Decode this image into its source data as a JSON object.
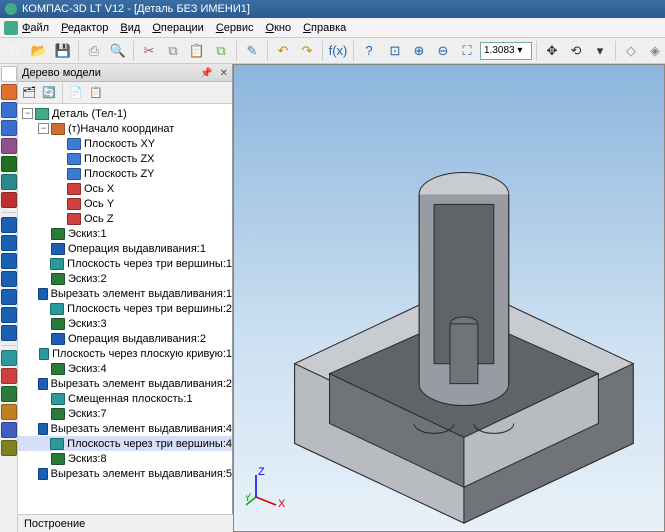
{
  "title": "КОМПАС-3D LT V12 - [Деталь БЕЗ ИМЕНИ1]",
  "menu": [
    "Файл",
    "Редактор",
    "Вид",
    "Операции",
    "Сервис",
    "Окно",
    "Справка"
  ],
  "zoom_value": "1.3083",
  "panel_title": "Дерево модели",
  "status_text": "Построение",
  "tree_root": "Деталь (Тел-1)",
  "tree": [
    {
      "d": 1,
      "t": "(т)Начало координат",
      "exp": true,
      "ic": "origin"
    },
    {
      "d": 2,
      "t": "Плоскость XY",
      "ic": "plane"
    },
    {
      "d": 2,
      "t": "Плоскость ZX",
      "ic": "plane"
    },
    {
      "d": 2,
      "t": "Плоскость ZY",
      "ic": "plane"
    },
    {
      "d": 2,
      "t": "Ось X",
      "ic": "axis"
    },
    {
      "d": 2,
      "t": "Ось Y",
      "ic": "axis"
    },
    {
      "d": 2,
      "t": "Ось Z",
      "ic": "axis"
    },
    {
      "d": 1,
      "t": "Эскиз:1",
      "ic": "sketch"
    },
    {
      "d": 1,
      "t": "Операция выдавливания:1",
      "ic": "extrude"
    },
    {
      "d": 1,
      "t": "Плоскость через три вершины:1",
      "ic": "plane3"
    },
    {
      "d": 1,
      "t": "Эскиз:2",
      "ic": "sketch"
    },
    {
      "d": 1,
      "t": "Вырезать элемент выдавливания:1",
      "ic": "cut"
    },
    {
      "d": 1,
      "t": "Плоскость через три вершины:2",
      "ic": "plane3"
    },
    {
      "d": 1,
      "t": "Эскиз:3",
      "ic": "sketch"
    },
    {
      "d": 1,
      "t": "Операция выдавливания:2",
      "ic": "extrude"
    },
    {
      "d": 1,
      "t": "Плоскость через плоскую кривую:1",
      "ic": "plane3"
    },
    {
      "d": 1,
      "t": "Эскиз:4",
      "ic": "sketch"
    },
    {
      "d": 1,
      "t": "Вырезать элемент выдавливания:2",
      "ic": "cut"
    },
    {
      "d": 1,
      "t": "Смещенная плоскость:1",
      "ic": "plane3"
    },
    {
      "d": 1,
      "t": "Эскиз:7",
      "ic": "sketch"
    },
    {
      "d": 1,
      "t": "Вырезать элемент выдавливания:4",
      "ic": "cut"
    },
    {
      "d": 1,
      "t": "Плоскость через три вершины:4",
      "ic": "plane3",
      "sel": true
    },
    {
      "d": 1,
      "t": "Эскиз:8",
      "ic": "sketch"
    },
    {
      "d": 1,
      "t": "Вырезать элемент выдавливания:5",
      "ic": "cut"
    }
  ],
  "icon_colors": {
    "origin": "#d07030",
    "plane": "#3b7bd1",
    "axis": "#d04040",
    "sketch": "#2a7a3a",
    "extrude": "#1a5fb4",
    "cut": "#1a5fb4",
    "plane3": "#2a9a9a"
  },
  "toolbar_icons": [
    {
      "n": "new",
      "c": "#fff",
      "s": "□"
    },
    {
      "n": "open",
      "c": "#e8c060",
      "s": "📂"
    },
    {
      "n": "save",
      "c": "#3a6",
      "s": "💾"
    },
    {
      "n": "sep"
    },
    {
      "n": "print",
      "c": "#888",
      "s": "⎙"
    },
    {
      "n": "preview",
      "c": "#48a",
      "s": "🔍"
    },
    {
      "n": "sep"
    },
    {
      "n": "cut",
      "c": "#a55",
      "s": "✂"
    },
    {
      "n": "copy",
      "c": "#888",
      "s": "⧉"
    },
    {
      "n": "paste",
      "c": "#c90",
      "s": "📋"
    },
    {
      "n": "copy-props",
      "c": "#6a4",
      "s": "⧉"
    },
    {
      "n": "sep"
    },
    {
      "n": "props",
      "c": "#48a",
      "s": "✎"
    },
    {
      "n": "sep"
    },
    {
      "n": "undo",
      "c": "#c80",
      "s": "↶"
    },
    {
      "n": "redo",
      "c": "#c80",
      "s": "↷"
    },
    {
      "n": "sep"
    },
    {
      "n": "fx",
      "c": "#26a",
      "s": "f(x)"
    },
    {
      "n": "sep"
    },
    {
      "n": "help",
      "c": "#26a",
      "s": "?"
    }
  ],
  "toolbar2_icons": [
    {
      "n": "zoom-window",
      "c": "#26a",
      "s": "⊡"
    },
    {
      "n": "zoom-in",
      "c": "#26a",
      "s": "⊕"
    },
    {
      "n": "zoom-out",
      "c": "#26a",
      "s": "⊖"
    },
    {
      "n": "zoom-fit",
      "c": "#26a",
      "s": "⛶"
    },
    {
      "n": "zoom-box"
    },
    {
      "n": "sep"
    },
    {
      "n": "pan",
      "c": "#333",
      "s": "✥"
    },
    {
      "n": "orbit",
      "c": "#333",
      "s": "⟲"
    },
    {
      "n": "orient",
      "c": "#333",
      "s": "▾"
    },
    {
      "n": "sep"
    },
    {
      "n": "wire",
      "c": "#888",
      "s": "◇"
    },
    {
      "n": "hidden",
      "c": "#888",
      "s": "◈"
    },
    {
      "n": "shaded",
      "c": "#888",
      "s": "◆"
    },
    {
      "n": "persp",
      "c": "#48c",
      "s": "▣"
    }
  ],
  "left_tools": [
    {
      "n": "select",
      "c": "#fff"
    },
    {
      "n": "geom",
      "c": "#e07030"
    },
    {
      "n": "line",
      "c": "#3a6ed1"
    },
    {
      "n": "dim",
      "c": "#3a6ed1"
    },
    {
      "n": "arc",
      "c": "#905090"
    },
    {
      "n": "text",
      "c": "#207020"
    },
    {
      "n": "spline",
      "c": "#2a8a8a"
    },
    {
      "n": "point",
      "c": "#c03030"
    },
    {
      "n": "sep",
      "c": "#ccc"
    },
    {
      "n": "extrude",
      "c": "#1a5fb4"
    },
    {
      "n": "cut",
      "c": "#1a5fb4"
    },
    {
      "n": "revolve",
      "c": "#1a5fb4"
    },
    {
      "n": "sweep",
      "c": "#1a5fb4"
    },
    {
      "n": "shell",
      "c": "#1a5fb4"
    },
    {
      "n": "fillet",
      "c": "#1a5fb4"
    },
    {
      "n": "chamfer",
      "c": "#1a5fb4"
    },
    {
      "n": "sep",
      "c": "#ccc"
    },
    {
      "n": "plane",
      "c": "#2a9a9a"
    },
    {
      "n": "axis2",
      "c": "#d04040"
    },
    {
      "n": "sketch2",
      "c": "#2a7a3a"
    },
    {
      "n": "array",
      "c": "#c08020"
    },
    {
      "n": "mirror",
      "c": "#4060c0"
    },
    {
      "n": "measure",
      "c": "#808020"
    }
  ],
  "axis_labels": {
    "x": "X",
    "y": "Y",
    "z": "Z"
  },
  "model_colors": {
    "face_light": "#b8bcc0",
    "face_mid": "#989ca2",
    "face_dark": "#707478",
    "face_top": "#c8ccd0",
    "edge": "#2a2a2a",
    "inner": "#606468"
  }
}
